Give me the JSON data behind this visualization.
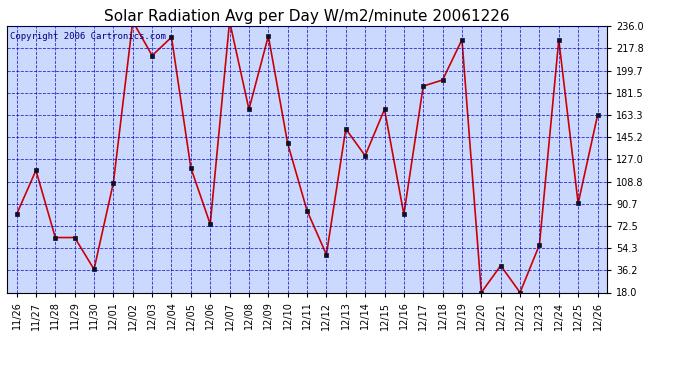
{
  "title": "Solar Radiation Avg per Day W/m2/minute 20061226",
  "copyright_text": "Copyright 2006 Cartronics.com",
  "dates": [
    "11/26",
    "11/27",
    "11/28",
    "11/29",
    "11/30",
    "12/01",
    "12/02",
    "12/03",
    "12/04",
    "12/05",
    "12/06",
    "12/07",
    "12/08",
    "12/09",
    "12/10",
    "12/11",
    "12/12",
    "12/13",
    "12/14",
    "12/15",
    "12/16",
    "12/17",
    "12/18",
    "12/19",
    "12/20",
    "12/21",
    "12/22",
    "12/23",
    "12/24",
    "12/25",
    "12/26"
  ],
  "values": [
    82,
    118,
    63,
    63,
    37,
    108,
    240,
    212,
    227,
    120,
    74,
    240,
    168,
    228,
    140,
    85,
    49,
    152,
    130,
    168,
    82,
    187,
    192,
    225,
    18,
    40,
    18,
    57,
    225,
    91,
    163
  ],
  "y_ticks": [
    18.0,
    36.2,
    54.3,
    72.5,
    90.7,
    108.8,
    127.0,
    145.2,
    163.3,
    181.5,
    199.7,
    217.8,
    236.0
  ],
  "ylim_min": 18.0,
  "ylim_max": 236.0,
  "line_color": "#cc0000",
  "marker_face_color": "#111111",
  "marker_edge_color": "#111111",
  "plot_bg_color": "#ccd9ff",
  "grid_color": "#0000bb",
  "fig_bg_color": "#ffffff",
  "title_fontsize": 11,
  "tick_fontsize": 7,
  "copyright_fontsize": 6.5,
  "copyright_color": "#000080"
}
